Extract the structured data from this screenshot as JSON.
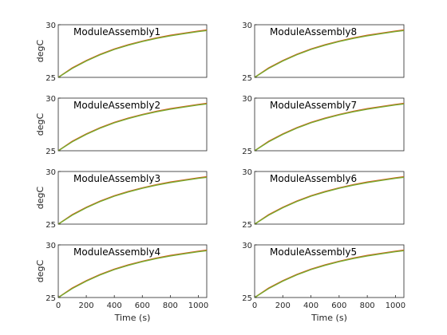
{
  "chart_data": [
    {
      "type": "line",
      "title": "ModuleAssembly1",
      "ylabel": "degC",
      "xlabel": "",
      "xlim": [
        0,
        1060
      ],
      "ylim": [
        25,
        30
      ],
      "yticks": [
        25,
        30
      ],
      "xticks": [],
      "xtick_labels": [],
      "series": [
        {
          "color": "#d95319",
          "x": [
            0,
            100,
            200,
            300,
            400,
            500,
            600,
            700,
            800,
            900,
            1000,
            1060
          ],
          "values": [
            25,
            25.9,
            26.6,
            27.2,
            27.7,
            28.1,
            28.45,
            28.75,
            29.0,
            29.2,
            29.4,
            29.5
          ]
        },
        {
          "color": "#77ac30",
          "x": [
            0,
            100,
            200,
            300,
            400,
            500,
            600,
            700,
            800,
            900,
            1000,
            1060
          ],
          "values": [
            25,
            25.85,
            26.55,
            27.15,
            27.65,
            28.05,
            28.4,
            28.7,
            28.95,
            29.15,
            29.35,
            29.45
          ]
        }
      ]
    },
    {
      "type": "line",
      "title": "ModuleAssembly8",
      "ylabel": "",
      "xlabel": "",
      "xlim": [
        0,
        1060
      ],
      "ylim": [
        25,
        30
      ],
      "yticks": [
        25,
        30
      ],
      "xticks": [],
      "xtick_labels": [],
      "series": [
        {
          "color": "#d95319",
          "x": [
            0,
            100,
            200,
            300,
            400,
            500,
            600,
            700,
            800,
            900,
            1000,
            1060
          ],
          "values": [
            25,
            25.9,
            26.6,
            27.2,
            27.7,
            28.1,
            28.45,
            28.75,
            29.0,
            29.2,
            29.4,
            29.5
          ]
        },
        {
          "color": "#77ac30",
          "x": [
            0,
            100,
            200,
            300,
            400,
            500,
            600,
            700,
            800,
            900,
            1000,
            1060
          ],
          "values": [
            25,
            25.85,
            26.55,
            27.15,
            27.65,
            28.05,
            28.4,
            28.7,
            28.95,
            29.15,
            29.35,
            29.45
          ]
        }
      ]
    },
    {
      "type": "line",
      "title": "ModuleAssembly2",
      "ylabel": "degC",
      "xlabel": "",
      "xlim": [
        0,
        1060
      ],
      "ylim": [
        25,
        30
      ],
      "yticks": [
        25,
        30
      ],
      "xticks": [],
      "xtick_labels": [],
      "series": [
        {
          "color": "#d95319",
          "x": [
            0,
            100,
            200,
            300,
            400,
            500,
            600,
            700,
            800,
            900,
            1000,
            1060
          ],
          "values": [
            25,
            25.9,
            26.6,
            27.2,
            27.7,
            28.1,
            28.45,
            28.75,
            29.0,
            29.2,
            29.4,
            29.5
          ]
        },
        {
          "color": "#77ac30",
          "x": [
            0,
            100,
            200,
            300,
            400,
            500,
            600,
            700,
            800,
            900,
            1000,
            1060
          ],
          "values": [
            25,
            25.85,
            26.55,
            27.15,
            27.65,
            28.05,
            28.4,
            28.7,
            28.95,
            29.15,
            29.35,
            29.45
          ]
        }
      ]
    },
    {
      "type": "line",
      "title": "ModuleAssembly7",
      "ylabel": "",
      "xlabel": "",
      "xlim": [
        0,
        1060
      ],
      "ylim": [
        25,
        30
      ],
      "yticks": [
        25,
        30
      ],
      "xticks": [],
      "xtick_labels": [],
      "series": [
        {
          "color": "#d95319",
          "x": [
            0,
            100,
            200,
            300,
            400,
            500,
            600,
            700,
            800,
            900,
            1000,
            1060
          ],
          "values": [
            25,
            25.9,
            26.6,
            27.2,
            27.7,
            28.1,
            28.45,
            28.75,
            29.0,
            29.2,
            29.4,
            29.5
          ]
        },
        {
          "color": "#77ac30",
          "x": [
            0,
            100,
            200,
            300,
            400,
            500,
            600,
            700,
            800,
            900,
            1000,
            1060
          ],
          "values": [
            25,
            25.85,
            26.55,
            27.15,
            27.65,
            28.05,
            28.4,
            28.7,
            28.95,
            29.15,
            29.35,
            29.45
          ]
        }
      ]
    },
    {
      "type": "line",
      "title": "ModuleAssembly3",
      "ylabel": "degC",
      "xlabel": "",
      "xlim": [
        0,
        1060
      ],
      "ylim": [
        25,
        30
      ],
      "yticks": [
        25,
        30
      ],
      "xticks": [],
      "xtick_labels": [],
      "series": [
        {
          "color": "#d95319",
          "x": [
            0,
            100,
            200,
            300,
            400,
            500,
            600,
            700,
            800,
            900,
            1000,
            1060
          ],
          "values": [
            25,
            25.9,
            26.6,
            27.2,
            27.7,
            28.1,
            28.45,
            28.75,
            29.0,
            29.2,
            29.4,
            29.5
          ]
        },
        {
          "color": "#77ac30",
          "x": [
            0,
            100,
            200,
            300,
            400,
            500,
            600,
            700,
            800,
            900,
            1000,
            1060
          ],
          "values": [
            25,
            25.85,
            26.55,
            27.15,
            27.65,
            28.05,
            28.4,
            28.7,
            28.95,
            29.15,
            29.35,
            29.45
          ]
        }
      ]
    },
    {
      "type": "line",
      "title": "ModuleAssembly6",
      "ylabel": "",
      "xlabel": "",
      "xlim": [
        0,
        1060
      ],
      "ylim": [
        25,
        30
      ],
      "yticks": [
        25,
        30
      ],
      "xticks": [],
      "xtick_labels": [],
      "series": [
        {
          "color": "#d95319",
          "x": [
            0,
            100,
            200,
            300,
            400,
            500,
            600,
            700,
            800,
            900,
            1000,
            1060
          ],
          "values": [
            25,
            25.9,
            26.6,
            27.2,
            27.7,
            28.1,
            28.45,
            28.75,
            29.0,
            29.2,
            29.4,
            29.5
          ]
        },
        {
          "color": "#77ac30",
          "x": [
            0,
            100,
            200,
            300,
            400,
            500,
            600,
            700,
            800,
            900,
            1000,
            1060
          ],
          "values": [
            25,
            25.85,
            26.55,
            27.15,
            27.65,
            28.05,
            28.4,
            28.7,
            28.95,
            29.15,
            29.35,
            29.45
          ]
        }
      ]
    },
    {
      "type": "line",
      "title": "ModuleAssembly4",
      "ylabel": "degC",
      "xlabel": "Time (s)",
      "xlim": [
        0,
        1060
      ],
      "ylim": [
        25,
        30
      ],
      "yticks": [
        25,
        30
      ],
      "xticks": [
        0,
        200,
        400,
        600,
        800,
        1000
      ],
      "xtick_labels": [
        "0",
        "200",
        "400",
        "600",
        "800",
        "1000"
      ],
      "series": [
        {
          "color": "#d95319",
          "x": [
            0,
            100,
            200,
            300,
            400,
            500,
            600,
            700,
            800,
            900,
            1000,
            1060
          ],
          "values": [
            25,
            25.9,
            26.6,
            27.2,
            27.7,
            28.1,
            28.45,
            28.75,
            29.0,
            29.2,
            29.4,
            29.5
          ]
        },
        {
          "color": "#77ac30",
          "x": [
            0,
            100,
            200,
            300,
            400,
            500,
            600,
            700,
            800,
            900,
            1000,
            1060
          ],
          "values": [
            25,
            25.85,
            26.55,
            27.15,
            27.65,
            28.05,
            28.4,
            28.7,
            28.95,
            29.15,
            29.35,
            29.45
          ]
        }
      ]
    },
    {
      "type": "line",
      "title": "ModuleAssembly5",
      "ylabel": "",
      "xlabel": "Time (s)",
      "xlim": [
        0,
        1060
      ],
      "ylim": [
        25,
        30
      ],
      "yticks": [
        25,
        30
      ],
      "xticks": [
        0,
        200,
        400,
        600,
        800,
        1000
      ],
      "xtick_labels": [
        "0",
        "200",
        "400",
        "600",
        "800",
        "1000"
      ],
      "series": [
        {
          "color": "#d95319",
          "x": [
            0,
            100,
            200,
            300,
            400,
            500,
            600,
            700,
            800,
            900,
            1000,
            1060
          ],
          "values": [
            25,
            25.9,
            26.6,
            27.2,
            27.7,
            28.1,
            28.45,
            28.75,
            29.0,
            29.2,
            29.4,
            29.5
          ]
        },
        {
          "color": "#77ac30",
          "x": [
            0,
            100,
            200,
            300,
            400,
            500,
            600,
            700,
            800,
            900,
            1000,
            1060
          ],
          "values": [
            25,
            25.85,
            26.55,
            27.15,
            27.65,
            28.05,
            28.4,
            28.7,
            28.95,
            29.15,
            29.35,
            29.45
          ]
        }
      ]
    }
  ]
}
